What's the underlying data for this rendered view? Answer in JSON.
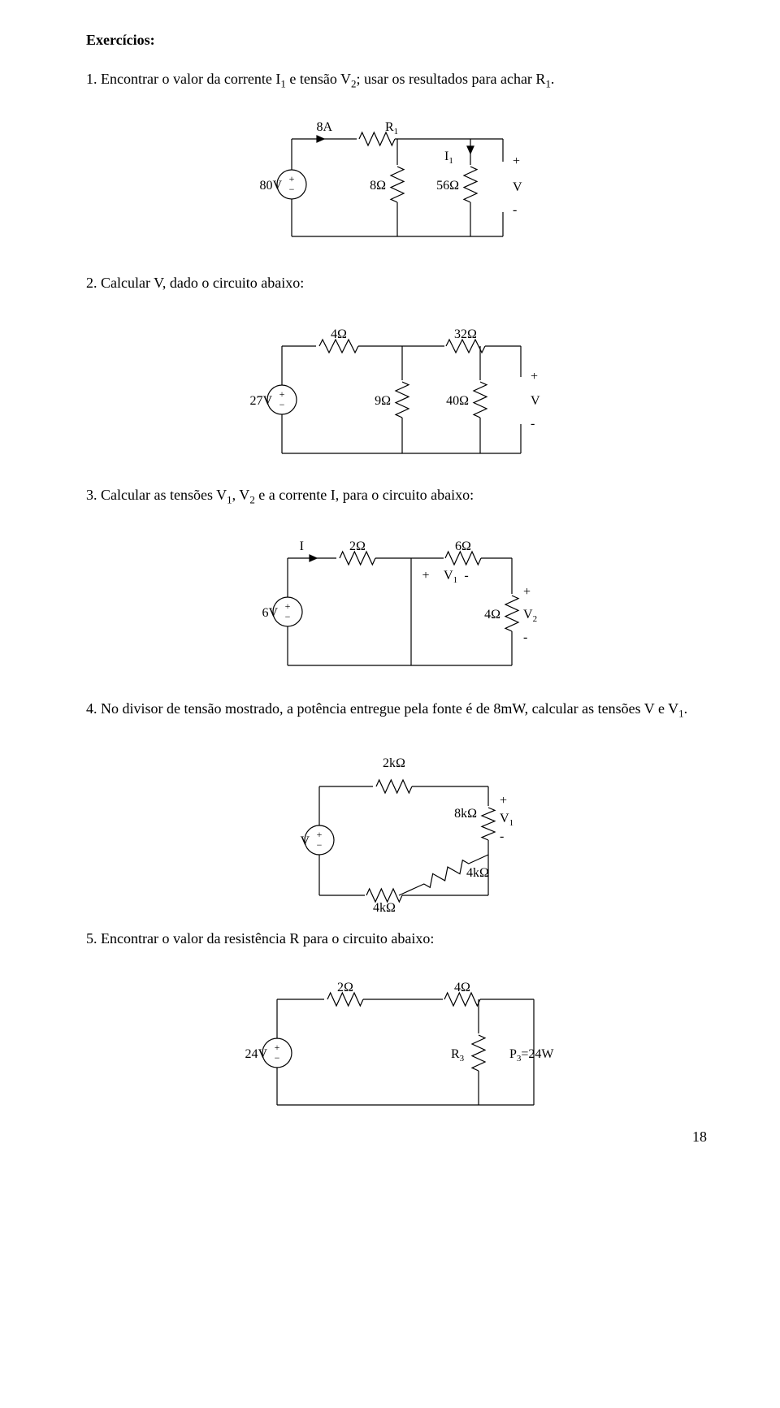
{
  "heading": "Exercícios:",
  "items": {
    "1": {
      "num": "1.",
      "pre": "Encontrar o valor da corrente I",
      "sub1": "1",
      "mid": " e tensão V",
      "sub2": "2",
      "post": "; usar os resultados para achar R",
      "sub3": "1",
      "dot": "."
    },
    "2": {
      "num": "2.",
      "text": "Calcular V, dado o circuito abaixo:"
    },
    "3": {
      "num": "3.",
      "pre": "Calcular as tensões V",
      "sub1": "1",
      "mid": ", V",
      "sub2": "2",
      "post": " e a corrente I, para o circuito abaixo:"
    },
    "4": {
      "num": "4.",
      "pre": "No divisor de tensão mostrado, a potência entregue pela fonte é de 8mW, calcular as tensões V e V",
      "sub1": "1",
      "dot": "."
    },
    "5": {
      "num": "5.",
      "text": "Encontrar o valor da resistência R para o circuito abaixo:"
    }
  },
  "circuits": {
    "c1": {
      "top_left": "8A",
      "top_right": "R",
      "top_right_sub": "1",
      "src": "80V",
      "r1": "8Ω",
      "r2": "56Ω",
      "i_label": "I",
      "i_sub": "1",
      "plus": "+",
      "v": "V",
      "minus": "-"
    },
    "c2": {
      "r_top1": "4Ω",
      "r_top2": "32Ω",
      "src": "27V",
      "r_mid": "9Ω",
      "r_right": "40Ω",
      "plus": "+",
      "v": "V",
      "minus": "-"
    },
    "c3": {
      "i_label": "I",
      "r_top1": "2Ω",
      "r_top2": "6Ω",
      "src": "6V",
      "r_right": "4Ω",
      "v1_plus": "+",
      "v1_label": "V",
      "v1_sub": "1",
      "v1_minus": "-",
      "v2_plus": "+",
      "v2_label": "V",
      "v2_sub": "2",
      "v2_minus": "-"
    },
    "c4": {
      "r_top": "2kΩ",
      "r_right": "8kΩ",
      "r_diag": "4kΩ",
      "r_bot": "4kΩ",
      "src": "V",
      "plus": "+",
      "v": "V",
      "v_sub": "1",
      "minus": "-"
    },
    "c5": {
      "r_top1": "2Ω",
      "r_top2": "4Ω",
      "src": "24V",
      "r_label": "R",
      "r_sub": "3",
      "p_label": "P",
      "p_sub": "3",
      "p_val": "=24W"
    }
  },
  "page_number": "18",
  "style": {
    "stroke": "#000000",
    "stroke_width": 1.2,
    "font_size_svg": 16,
    "font_size_sub": 11
  }
}
